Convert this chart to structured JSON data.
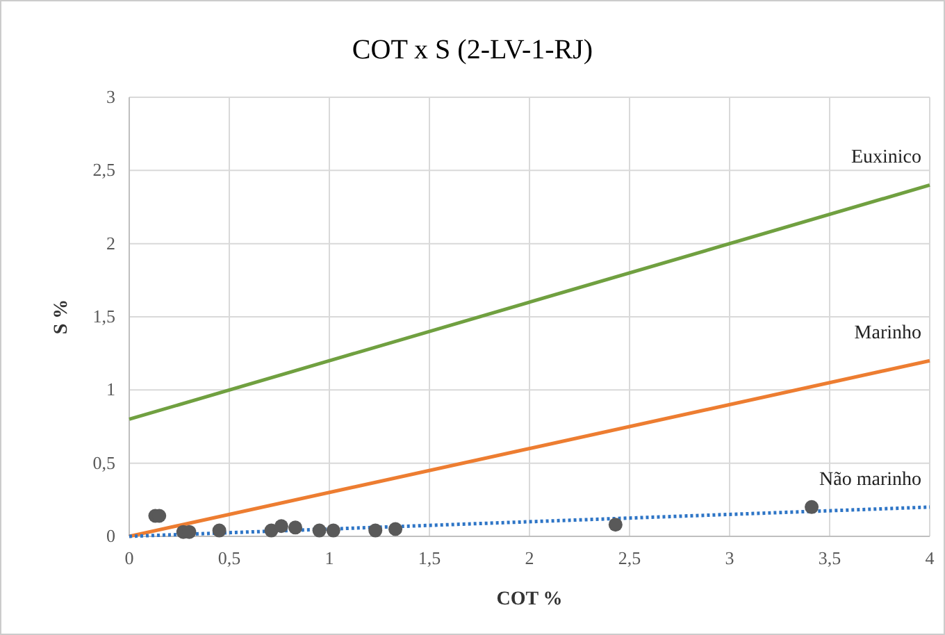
{
  "chart_data": {
    "type": "scatter",
    "title": "COT x S (2-LV-1-RJ)",
    "xlabel": "COT  %",
    "ylabel": "S %",
    "xlim": [
      0,
      4
    ],
    "ylim": [
      0,
      3
    ],
    "xticks": [
      0,
      {
        "value": 0.5,
        "label": "0,5"
      },
      1,
      {
        "value": 1.5,
        "label": "1,5"
      },
      2,
      {
        "value": 2.5,
        "label": "2,5"
      },
      3,
      {
        "value": 3.5,
        "label": "3,5"
      },
      4
    ],
    "yticks": [
      0,
      {
        "value": 0.5,
        "label": "0,5"
      },
      1,
      {
        "value": 1.5,
        "label": "1,5"
      },
      2,
      {
        "value": 2.5,
        "label": "2,5"
      },
      3
    ],
    "grid": true,
    "series": [
      {
        "type": "line",
        "name": "Euxinico",
        "color": "#70a040",
        "x": [
          0,
          4
        ],
        "values": [
          0.8,
          2.4
        ],
        "line_style": "solid"
      },
      {
        "type": "line",
        "name": "Marinho",
        "color": "#ed7d31",
        "x": [
          0,
          4
        ],
        "values": [
          0,
          1.2
        ],
        "line_style": "solid"
      },
      {
        "type": "line",
        "name": "Não marinho",
        "color": "#2e75c6",
        "x": [
          0,
          4
        ],
        "values": [
          0,
          0.2
        ],
        "line_style": "dotted"
      },
      {
        "color": "#595959",
        "marker": "circle",
        "x": [
          0.13,
          0.15,
          0.27,
          0.3,
          0.45,
          0.71,
          0.76,
          0.83,
          0.95,
          1.02,
          1.23,
          1.33,
          2.43,
          3.41
        ],
        "values": [
          0.14,
          0.14,
          0.03,
          0.03,
          0.04,
          0.04,
          0.07,
          0.06,
          0.04,
          0.04,
          0.04,
          0.05,
          0.08,
          0.2
        ]
      }
    ]
  }
}
